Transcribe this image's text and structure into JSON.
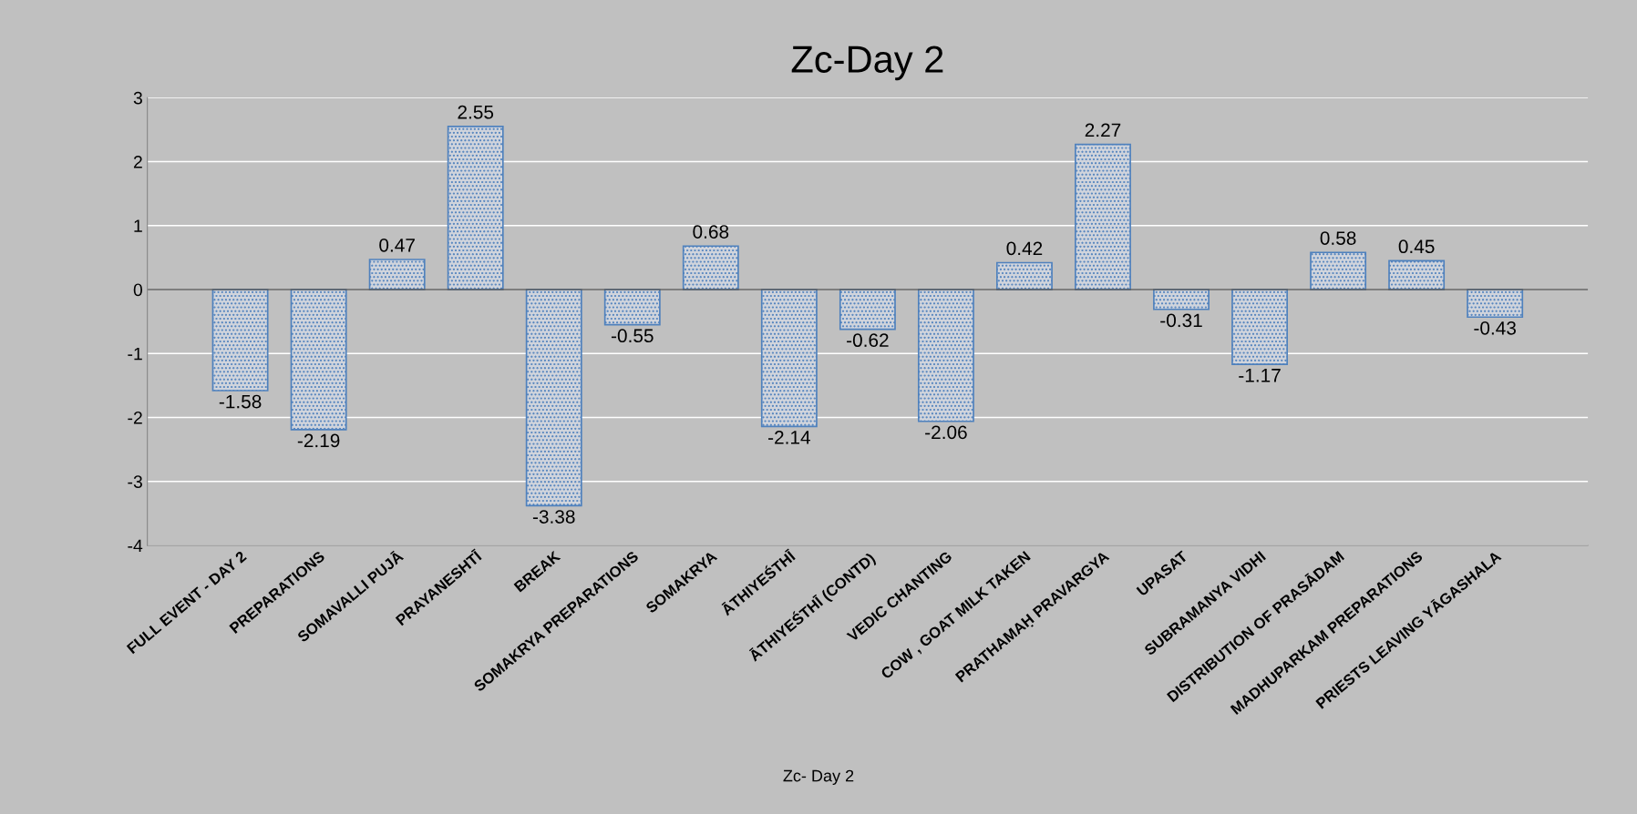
{
  "chart_data": {
    "type": "bar",
    "title": "Zc-Day 2",
    "xlabel": "Zc- Day 2",
    "categories": [
      "FULL EVENT - DAY 2",
      "PREPARATIONS",
      "SOMAVALLI PUJĀ",
      "PRAYANESHTĪ",
      "BREAK",
      "SOMAKRYA PREPARATIONS",
      "SOMAKRYA",
      "ĀTHIYEŚTHĪ",
      "ĀTHIYEŚTHĪ (CONTD)",
      "VEDIC CHANTING",
      "COW , GOAT MILK TAKEN",
      "PRATHAMAḤ PRAVARGYA",
      "UPASAT",
      "SUBRAMANYA VIDHI",
      "DISTRIBUTION OF PRASĀDAM",
      "MADHUPARKAM PREPARATIONS",
      "PRIESTS LEAVING YĀGASHALA"
    ],
    "values": [
      -1.58,
      -2.19,
      0.47,
      2.55,
      -3.38,
      -0.55,
      0.68,
      -2.14,
      -0.62,
      -2.06,
      0.42,
      2.27,
      -0.31,
      -1.17,
      0.58,
      0.45,
      -0.43
    ],
    "color": "#4f81bd",
    "ylim": [
      -4,
      3
    ],
    "yticks": [
      -4,
      -3,
      -2,
      -1,
      0,
      1,
      2,
      3
    ],
    "grid": "y",
    "data_labels": true
  }
}
